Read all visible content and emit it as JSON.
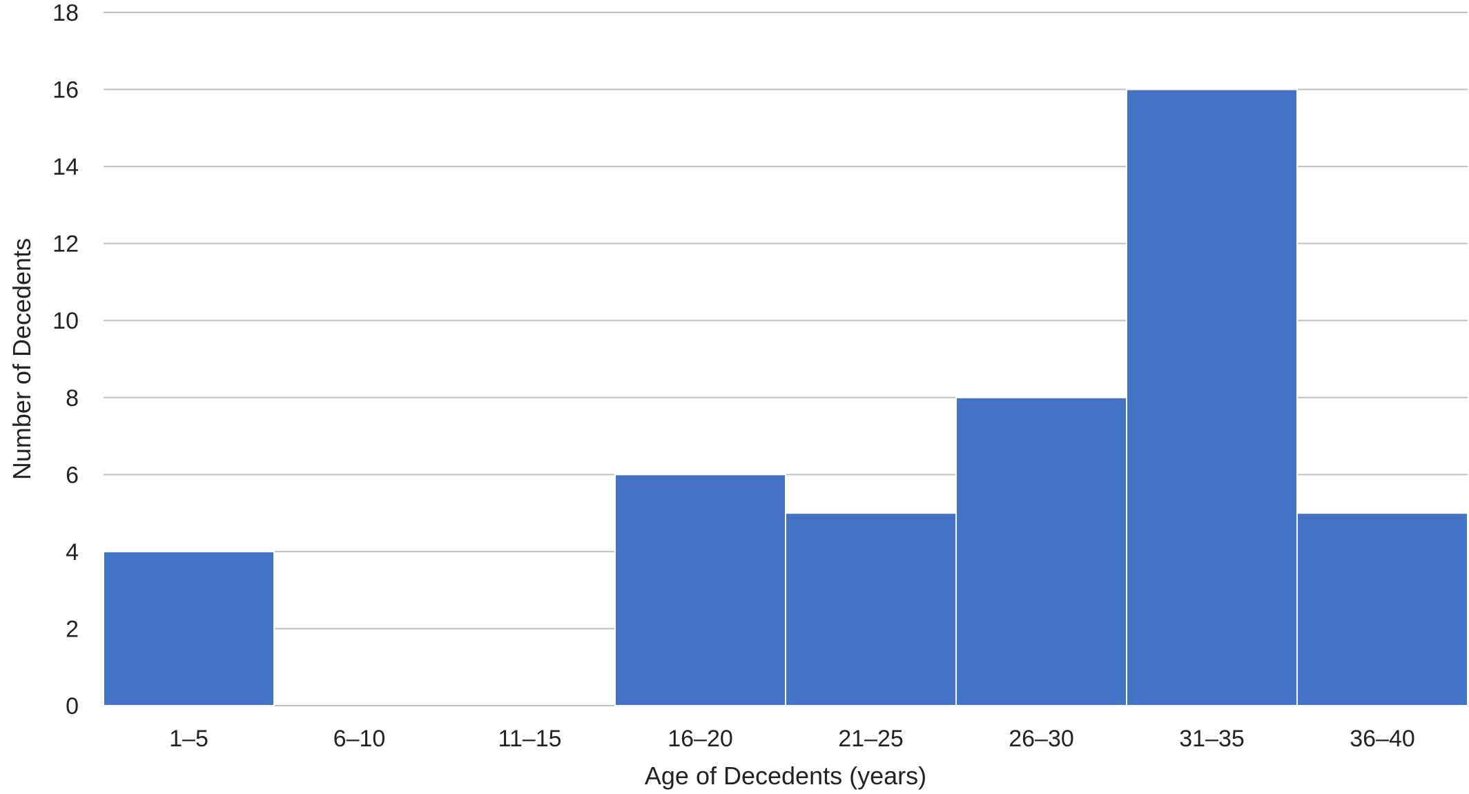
{
  "chart_data": {
    "type": "bar",
    "categories": [
      "1–5",
      "6–10",
      "11–15",
      "16–20",
      "21–25",
      "26–30",
      "31–35",
      "36–40"
    ],
    "values": [
      4,
      0,
      0,
      6,
      5,
      8,
      16,
      5
    ],
    "title": "",
    "xlabel": "Age of Decedents (years)",
    "ylabel": "Number of Decedents",
    "ylim": [
      0,
      18
    ],
    "yticks": [
      0,
      2,
      4,
      6,
      8,
      10,
      12,
      14,
      16,
      18
    ],
    "grid": true,
    "legend": "none",
    "colors": {
      "bar": "#4472C4",
      "bar_border": "#ffffff",
      "gridline": "#BFBFBF",
      "text": "#222222"
    }
  }
}
